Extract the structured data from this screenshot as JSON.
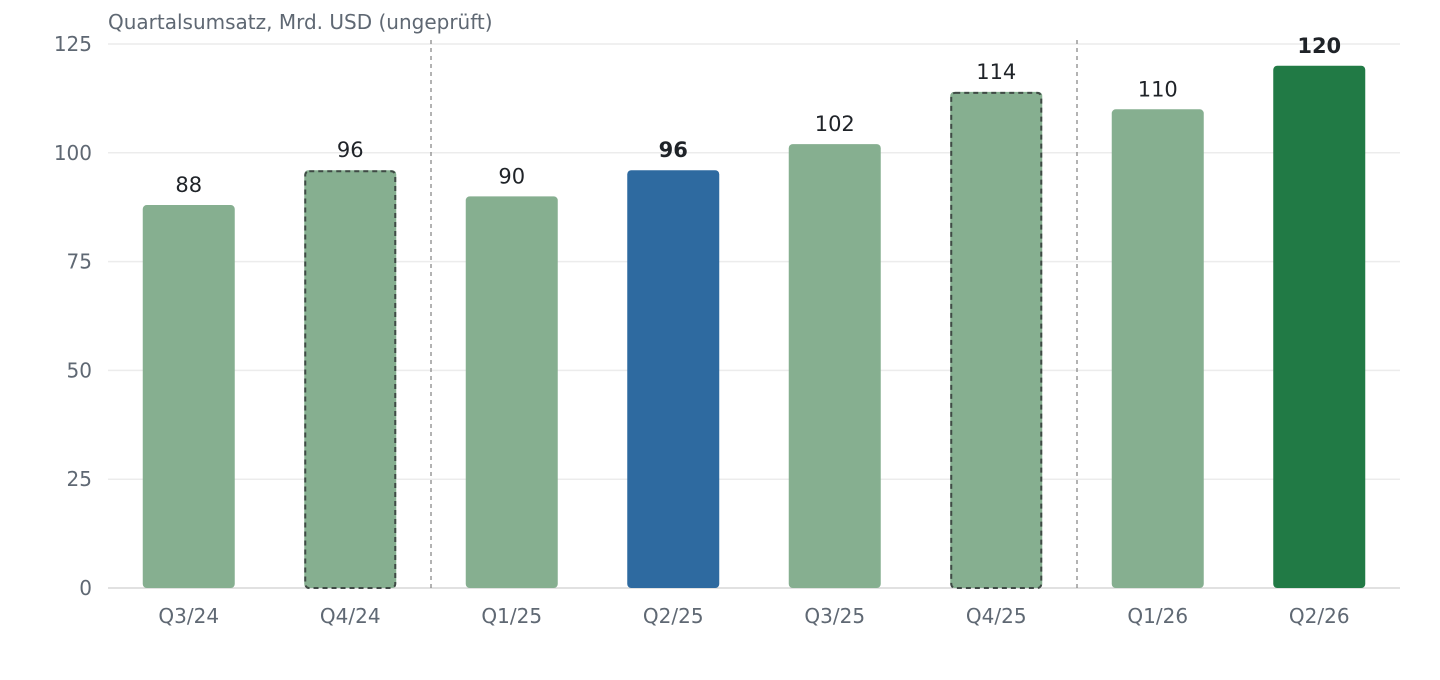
{
  "chart_data": {
    "type": "bar",
    "title": "Quartalsumsatz, Mrd. USD (ungeprüft)",
    "categories": [
      "Q3/24",
      "Q4/24",
      "Q1/25",
      "Q2/25",
      "Q3/25",
      "Q4/25",
      "Q1/26",
      "Q2/26"
    ],
    "values": [
      88,
      96,
      90,
      96,
      102,
      114,
      110,
      120
    ],
    "ylim": [
      0,
      125
    ],
    "yticks": [
      0,
      25,
      50,
      75,
      100,
      125
    ],
    "grid": true,
    "colors": {
      "default": "#86af90",
      "highlight_blue": "#2e6aa0",
      "highlight_green": "#217a45"
    },
    "bar_colors": [
      "default",
      "default",
      "default",
      "highlight_blue",
      "default",
      "default",
      "default",
      "highlight_green"
    ],
    "dashed_outline": [
      false,
      true,
      false,
      false,
      false,
      true,
      false,
      false
    ],
    "bold_labels": [
      false,
      false,
      false,
      true,
      false,
      false,
      false,
      true
    ],
    "dividers_after": [
      "Q4/24",
      "Q4/25"
    ]
  }
}
